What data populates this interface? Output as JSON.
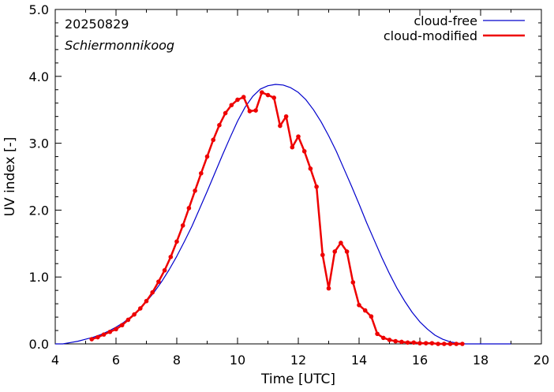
{
  "chart_data": {
    "type": "line",
    "annotations": {
      "date": "20250829",
      "location": "Schiermonnikoog"
    },
    "xlabel": "Time  [UTC]",
    "ylabel": "UV index  [-]",
    "xlim": [
      4,
      20
    ],
    "ylim": [
      0,
      5
    ],
    "x_ticks": [
      4,
      6,
      8,
      10,
      12,
      14,
      16,
      18,
      20
    ],
    "x_tick_labels": [
      "4",
      "6",
      "8",
      "10",
      "12",
      "14",
      "16",
      "18",
      "20"
    ],
    "y_ticks": [
      0,
      1,
      2,
      3,
      4,
      5
    ],
    "y_tick_labels": [
      "0.0",
      "1.0",
      "2.0",
      "3.0",
      "4.0",
      "5.0"
    ],
    "grid": false,
    "legend_position": "top-right",
    "series": [
      {
        "name": "cloud-free",
        "color": "#0000cc",
        "markers": false,
        "x": [
          4.0,
          4.25,
          4.5,
          4.75,
          5.0,
          5.25,
          5.5,
          5.75,
          6.0,
          6.25,
          6.5,
          6.75,
          7.0,
          7.25,
          7.5,
          7.75,
          8.0,
          8.25,
          8.5,
          8.75,
          9.0,
          9.25,
          9.5,
          9.75,
          10.0,
          10.25,
          10.5,
          10.75,
          11.0,
          11.25,
          11.5,
          11.75,
          12.0,
          12.25,
          12.5,
          12.75,
          13.0,
          13.25,
          13.5,
          13.75,
          14.0,
          14.25,
          14.5,
          14.75,
          15.0,
          15.25,
          15.5,
          15.75,
          16.0,
          16.25,
          16.5,
          16.75,
          17.0,
          17.25,
          17.5,
          17.75,
          18.0,
          18.25,
          18.5,
          18.75,
          19.0
        ],
        "y": [
          0.0,
          0.0,
          0.02,
          0.04,
          0.07,
          0.1,
          0.14,
          0.19,
          0.25,
          0.32,
          0.41,
          0.51,
          0.63,
          0.77,
          0.93,
          1.11,
          1.31,
          1.53,
          1.76,
          2.02,
          2.28,
          2.55,
          2.82,
          3.08,
          3.33,
          3.54,
          3.7,
          3.81,
          3.86,
          3.88,
          3.87,
          3.83,
          3.76,
          3.65,
          3.5,
          3.32,
          3.11,
          2.88,
          2.62,
          2.36,
          2.09,
          1.81,
          1.55,
          1.29,
          1.05,
          0.83,
          0.64,
          0.47,
          0.33,
          0.22,
          0.13,
          0.07,
          0.03,
          0.01,
          0.0,
          0.0,
          0.0,
          0.0,
          0.0,
          0.0,
          0.0
        ]
      },
      {
        "name": "cloud-modified",
        "color": "#ee0000",
        "markers": true,
        "x": [
          5.2,
          5.4,
          5.6,
          5.8,
          6.0,
          6.2,
          6.4,
          6.6,
          6.8,
          7.0,
          7.2,
          7.4,
          7.6,
          7.8,
          8.0,
          8.2,
          8.4,
          8.6,
          8.8,
          9.0,
          9.2,
          9.4,
          9.6,
          9.8,
          10.0,
          10.2,
          10.4,
          10.6,
          10.8,
          11.0,
          11.2,
          11.4,
          11.6,
          11.8,
          12.0,
          12.2,
          12.4,
          12.6,
          12.8,
          13.0,
          13.2,
          13.4,
          13.6,
          13.8,
          14.0,
          14.2,
          14.4,
          14.6,
          14.8,
          15.0,
          15.2,
          15.4,
          15.6,
          15.8,
          16.0,
          16.2,
          16.4,
          16.6,
          16.8,
          17.0,
          17.2,
          17.4
        ],
        "y": [
          0.07,
          0.1,
          0.14,
          0.18,
          0.22,
          0.28,
          0.36,
          0.44,
          0.53,
          0.64,
          0.77,
          0.93,
          1.1,
          1.3,
          1.53,
          1.77,
          2.03,
          2.29,
          2.55,
          2.8,
          3.05,
          3.27,
          3.45,
          3.57,
          3.65,
          3.69,
          3.48,
          3.49,
          3.76,
          3.72,
          3.68,
          3.26,
          3.4,
          2.94,
          3.1,
          2.88,
          2.62,
          2.35,
          1.33,
          0.83,
          1.38,
          1.51,
          1.38,
          0.92,
          0.58,
          0.5,
          0.41,
          0.15,
          0.09,
          0.06,
          0.04,
          0.03,
          0.02,
          0.02,
          0.01,
          0.01,
          0.01,
          0.0,
          0.0,
          0.0,
          0.0,
          0.0
        ]
      }
    ]
  }
}
